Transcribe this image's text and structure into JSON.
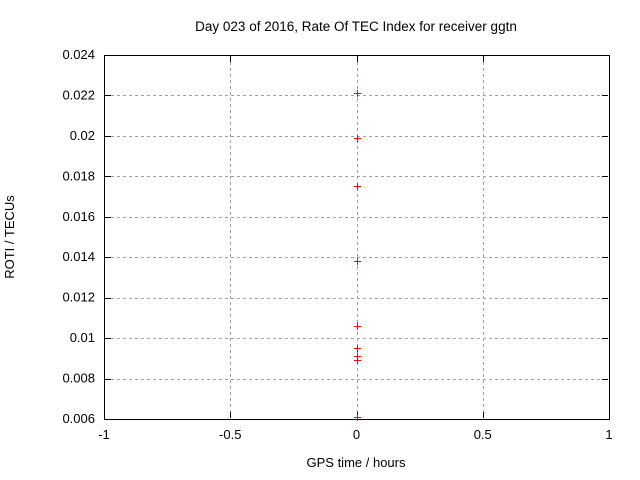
{
  "page": {
    "background": "#ffffff"
  },
  "chart_data": {
    "type": "scatter",
    "title": "Day 023 of 2016, Rate Of TEC Index for receiver ggtn",
    "xlabel": "GPS time / hours",
    "ylabel": "ROTI / TECUs",
    "xlim": [
      -1,
      1
    ],
    "ylim": [
      0.006,
      0.024
    ],
    "xticks": [
      -1,
      -0.5,
      0,
      0.5,
      1
    ],
    "xtick_labels": [
      "-1",
      "-0.5",
      "0",
      "0.5",
      "1"
    ],
    "yticks": [
      0.006,
      0.008,
      0.01,
      0.012,
      0.014,
      0.016,
      0.018,
      0.02,
      0.022,
      0.024
    ],
    "ytick_labels": [
      "0.006",
      "0.008",
      "0.01",
      "0.012",
      "0.014",
      "0.016",
      "0.018",
      "0.02",
      "0.022",
      "0.024"
    ],
    "grid": true,
    "legend": "none",
    "marker": {
      "shape": "plus",
      "color": "#ff0000",
      "size": 7
    },
    "colors": {
      "marker": "#ff0000",
      "grid": "#a0a0a0",
      "axis": "#000000",
      "text": "#000000"
    },
    "series": [
      {
        "name": "ROTI",
        "points": [
          {
            "x": 0,
            "y": 0.0221
          },
          {
            "x": 0,
            "y": 0.0199
          },
          {
            "x": 0,
            "y": 0.0175
          },
          {
            "x": 0,
            "y": 0.0138
          },
          {
            "x": 0,
            "y": 0.0106
          },
          {
            "x": 0,
            "y": 0.0095
          },
          {
            "x": 0,
            "y": 0.0091
          },
          {
            "x": 0,
            "y": 0.0089
          },
          {
            "x": 0,
            "y": 0.0061
          }
        ]
      }
    ]
  }
}
